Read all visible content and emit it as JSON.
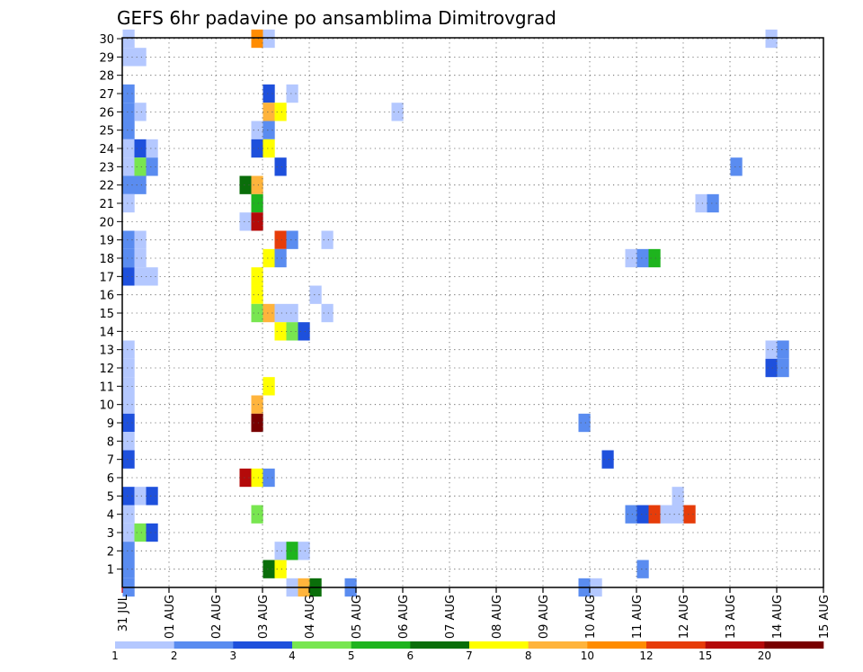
{
  "chart_data": {
    "type": "heatmap",
    "title": "GEFS 6hr padavine po ansamblima Dimitrovgrad",
    "xlabel": "",
    "ylabel": "",
    "x_ticks": [
      "31 JUL",
      "01 AUG",
      "02 AUG",
      "03 AUG",
      "04 AUG",
      "05 AUG",
      "06 AUG",
      "07 AUG",
      "08 AUG",
      "09 AUG",
      "10 AUG",
      "11 AUG",
      "12 AUG",
      "13 AUG",
      "14 AUG",
      "15 AUG"
    ],
    "y_ticks": [
      1,
      2,
      3,
      4,
      5,
      6,
      7,
      8,
      9,
      10,
      11,
      12,
      13,
      14,
      15,
      16,
      17,
      18,
      19,
      20,
      21,
      22,
      23,
      24,
      25,
      26,
      27,
      28,
      29,
      30
    ],
    "x_unit": "6-hour step from 31 JUL 00Z",
    "ylim": [
      0,
      30
    ],
    "xlim_steps": [
      0,
      60
    ],
    "legend": {
      "position": "bottom",
      "labels": [
        "1",
        "2",
        "3",
        "4",
        "5",
        "6",
        "7",
        "8",
        "10",
        "12",
        "15",
        "20"
      ],
      "colors": [
        "#b4c8ff",
        "#5a8cf0",
        "#1e50dc",
        "#78e650",
        "#1eb41e",
        "#0a6e0a",
        "#ffff00",
        "#ffb43c",
        "#ff8c00",
        "#e63c0a",
        "#b40a0a",
        "#780000"
      ]
    },
    "colors_by_class": [
      "#b4c8ff",
      "#5a8cf0",
      "#1e50dc",
      "#78e650",
      "#1eb41e",
      "#0a6e0a",
      "#ffff00",
      "#ffb43c",
      "#ff8c00",
      "#e63c0a",
      "#b40a0a",
      "#780000"
    ],
    "cells": [
      {
        "member": 30,
        "step": 1,
        "class": 0
      },
      {
        "member": 30,
        "step": 12,
        "class": 8
      },
      {
        "member": 30,
        "step": 13,
        "class": 0
      },
      {
        "member": 30,
        "step": 56,
        "class": 0
      },
      {
        "member": 29,
        "step": 1,
        "class": 0
      },
      {
        "member": 29,
        "step": 2,
        "class": 0
      },
      {
        "member": 27,
        "step": 1,
        "class": 1
      },
      {
        "member": 27,
        "step": 13,
        "class": 2
      },
      {
        "member": 27,
        "step": 15,
        "class": 0
      },
      {
        "member": 26,
        "step": 1,
        "class": 1
      },
      {
        "member": 26,
        "step": 2,
        "class": 0
      },
      {
        "member": 26,
        "step": 13,
        "class": 7
      },
      {
        "member": 26,
        "step": 14,
        "class": 6
      },
      {
        "member": 26,
        "step": 24,
        "class": 0
      },
      {
        "member": 25,
        "step": 1,
        "class": 1
      },
      {
        "member": 25,
        "step": 12,
        "class": 0
      },
      {
        "member": 25,
        "step": 13,
        "class": 1
      },
      {
        "member": 24,
        "step": 1,
        "class": 0
      },
      {
        "member": 24,
        "step": 2,
        "class": 2
      },
      {
        "member": 24,
        "step": 3,
        "class": 0
      },
      {
        "member": 24,
        "step": 12,
        "class": 2
      },
      {
        "member": 24,
        "step": 13,
        "class": 6
      },
      {
        "member": 23,
        "step": 1,
        "class": 0
      },
      {
        "member": 23,
        "step": 2,
        "class": 3
      },
      {
        "member": 23,
        "step": 3,
        "class": 1
      },
      {
        "member": 23,
        "step": 14,
        "class": 2
      },
      {
        "member": 23,
        "step": 53,
        "class": 1
      },
      {
        "member": 22,
        "step": 1,
        "class": 1
      },
      {
        "member": 22,
        "step": 2,
        "class": 1
      },
      {
        "member": 22,
        "step": 11,
        "class": 5
      },
      {
        "member": 22,
        "step": 12,
        "class": 7
      },
      {
        "member": 21,
        "step": 1,
        "class": 0
      },
      {
        "member": 21,
        "step": 12,
        "class": 4
      },
      {
        "member": 21,
        "step": 50,
        "class": 0
      },
      {
        "member": 21,
        "step": 51,
        "class": 1
      },
      {
        "member": 20,
        "step": 11,
        "class": 0
      },
      {
        "member": 20,
        "step": 12,
        "class": 10
      },
      {
        "member": 19,
        "step": 1,
        "class": 1
      },
      {
        "member": 19,
        "step": 2,
        "class": 0
      },
      {
        "member": 19,
        "step": 14,
        "class": 9
      },
      {
        "member": 19,
        "step": 15,
        "class": 1
      },
      {
        "member": 19,
        "step": 18,
        "class": 0
      },
      {
        "member": 18,
        "step": 1,
        "class": 1
      },
      {
        "member": 18,
        "step": 2,
        "class": 0
      },
      {
        "member": 18,
        "step": 13,
        "class": 6
      },
      {
        "member": 18,
        "step": 14,
        "class": 1
      },
      {
        "member": 18,
        "step": 44,
        "class": 0
      },
      {
        "member": 18,
        "step": 45,
        "class": 1
      },
      {
        "member": 18,
        "step": 46,
        "class": 4
      },
      {
        "member": 17,
        "step": 1,
        "class": 2
      },
      {
        "member": 17,
        "step": 2,
        "class": 0
      },
      {
        "member": 17,
        "step": 3,
        "class": 0
      },
      {
        "member": 17,
        "step": 12,
        "class": 6
      },
      {
        "member": 16,
        "step": 12,
        "class": 6
      },
      {
        "member": 16,
        "step": 17,
        "class": 0
      },
      {
        "member": 15,
        "step": 12,
        "class": 3
      },
      {
        "member": 15,
        "step": 13,
        "class": 7
      },
      {
        "member": 15,
        "step": 14,
        "class": 0
      },
      {
        "member": 15,
        "step": 15,
        "class": 0
      },
      {
        "member": 15,
        "step": 18,
        "class": 0
      },
      {
        "member": 14,
        "step": 14,
        "class": 6
      },
      {
        "member": 14,
        "step": 15,
        "class": 3
      },
      {
        "member": 14,
        "step": 16,
        "class": 2
      },
      {
        "member": 13,
        "step": 1,
        "class": 0
      },
      {
        "member": 13,
        "step": 56,
        "class": 0
      },
      {
        "member": 13,
        "step": 57,
        "class": 1
      },
      {
        "member": 12,
        "step": 1,
        "class": 0
      },
      {
        "member": 12,
        "step": 56,
        "class": 2
      },
      {
        "member": 12,
        "step": 57,
        "class": 1
      },
      {
        "member": 11,
        "step": 1,
        "class": 0
      },
      {
        "member": 11,
        "step": 13,
        "class": 6
      },
      {
        "member": 10,
        "step": 1,
        "class": 0
      },
      {
        "member": 10,
        "step": 12,
        "class": 7
      },
      {
        "member": 9,
        "step": 1,
        "class": 2
      },
      {
        "member": 9,
        "step": 12,
        "class": 11
      },
      {
        "member": 9,
        "step": 40,
        "class": 1
      },
      {
        "member": 8,
        "step": 1,
        "class": 0
      },
      {
        "member": 7,
        "step": 1,
        "class": 2
      },
      {
        "member": 7,
        "step": 42,
        "class": 2
      },
      {
        "member": 6,
        "step": 11,
        "class": 10
      },
      {
        "member": 6,
        "step": 12,
        "class": 6
      },
      {
        "member": 6,
        "step": 13,
        "class": 1
      },
      {
        "member": 5,
        "step": 1,
        "class": 2
      },
      {
        "member": 5,
        "step": 2,
        "class": 0
      },
      {
        "member": 5,
        "step": 3,
        "class": 2
      },
      {
        "member": 5,
        "step": 48,
        "class": 0
      },
      {
        "member": 4,
        "step": 1,
        "class": 0
      },
      {
        "member": 4,
        "step": 12,
        "class": 3
      },
      {
        "member": 4,
        "step": 44,
        "class": 1
      },
      {
        "member": 4,
        "step": 45,
        "class": 2
      },
      {
        "member": 4,
        "step": 46,
        "class": 9
      },
      {
        "member": 4,
        "step": 47,
        "class": 0
      },
      {
        "member": 4,
        "step": 48,
        "class": 0
      },
      {
        "member": 4,
        "step": 49,
        "class": 9
      },
      {
        "member": 3,
        "step": 1,
        "class": 0
      },
      {
        "member": 3,
        "step": 2,
        "class": 3
      },
      {
        "member": 3,
        "step": 3,
        "class": 2
      },
      {
        "member": 2,
        "step": 1,
        "class": 1
      },
      {
        "member": 2,
        "step": 14,
        "class": 0
      },
      {
        "member": 2,
        "step": 15,
        "class": 4
      },
      {
        "member": 2,
        "step": 16,
        "class": 0
      },
      {
        "member": 1,
        "step": 1,
        "class": 1
      },
      {
        "member": 1,
        "step": 13,
        "class": 5
      },
      {
        "member": 1,
        "step": 14,
        "class": 6
      },
      {
        "member": 1,
        "step": 45,
        "class": 1
      },
      {
        "member": 0,
        "step": 1,
        "class": 1
      },
      {
        "member": 0,
        "step": 15,
        "class": 0
      },
      {
        "member": 0,
        "step": 16,
        "class": 7
      },
      {
        "member": 0,
        "step": 17,
        "class": 5
      },
      {
        "member": 0,
        "step": 20,
        "class": 1
      },
      {
        "member": 0,
        "step": 40,
        "class": 1
      },
      {
        "member": 0,
        "step": 41,
        "class": 0
      }
    ]
  }
}
